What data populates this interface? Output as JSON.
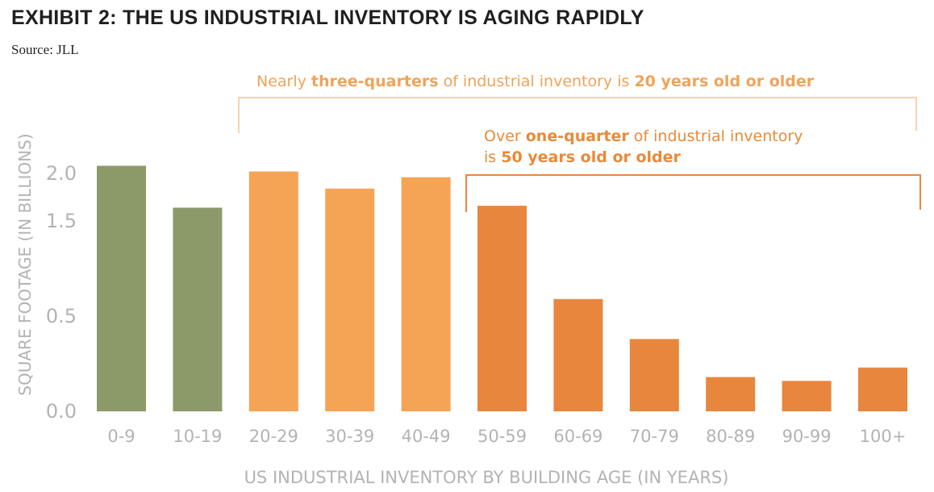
{
  "title": "EXHIBIT 2: THE US INDUSTRIAL INVENTORY IS AGING RAPIDLY",
  "source": "Source: JLL",
  "annotations": {
    "a1": {
      "p1": "Nearly ",
      "b1": "three-quarters",
      "p2": " of industrial inventory is ",
      "b2": "20 years old or older"
    },
    "a2": {
      "p1": "Over ",
      "b1": "one-quarter",
      "p2": " of industrial inventory",
      "p3": "is ",
      "b2": "50 years old or older"
    }
  },
  "colors": {
    "green": "#8c9a69",
    "light_orange": "#f5a456",
    "dark_orange": "#e9863d",
    "bracket_light": "#f6d3ad",
    "bracket_dark": "#e9863d",
    "axis_text": "#b3b3b3"
  },
  "chart_data": {
    "type": "bar",
    "xlabel": "US INDUSTRIAL INVENTORY BY BUILDING AGE (IN YEARS)",
    "ylabel": "SQUARE FOOTAGE (IN BILLIONS)",
    "yticks": [
      "0.0",
      "0.5",
      "1.5",
      "2.0"
    ],
    "categories": [
      "0-9",
      "10-19",
      "20-29",
      "30-39",
      "40-49",
      "50-59",
      "60-69",
      "70-79",
      "80-89",
      "90-99",
      "100+"
    ],
    "values": [
      2.08,
      1.64,
      2.02,
      1.84,
      1.96,
      1.66,
      0.68,
      0.38,
      0.18,
      0.16,
      0.23
    ],
    "color_groups": [
      "green",
      "green",
      "light_orange",
      "light_orange",
      "light_orange",
      "dark_orange",
      "dark_orange",
      "dark_orange",
      "dark_orange",
      "dark_orange",
      "dark_orange"
    ],
    "grid": false
  }
}
